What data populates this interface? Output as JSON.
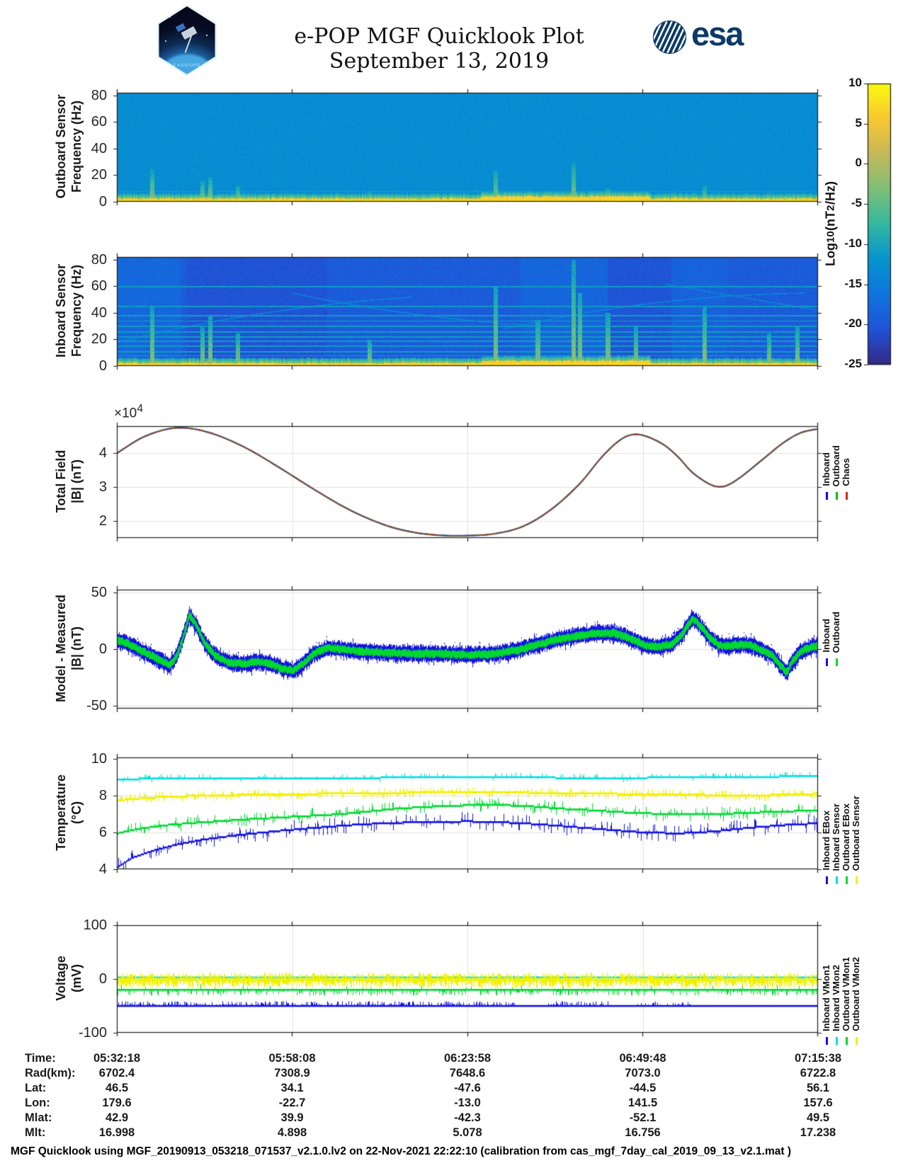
{
  "header": {
    "title": "e-POP MGF Quicklook Plot",
    "date": "September 13, 2019",
    "cassiope_label": "CASSIOPE",
    "esa_label": "esa"
  },
  "colorbar": {
    "label_prefix": "Log",
    "label_sub": "10",
    "label_mid": " (nT",
    "label_sup": "2",
    "label_suffix": "/Hz)",
    "ticks": [
      10,
      5,
      0,
      -5,
      -10,
      -15,
      -20,
      -25
    ],
    "range": [
      -25,
      10
    ],
    "colormap": "parula"
  },
  "chart_data": [
    {
      "type": "heatmap",
      "name": "outboard-spectrogram",
      "ylabel": [
        "Outboard Sensor",
        "Frequency (Hz)"
      ],
      "yticks": [
        0,
        20,
        40,
        60,
        80
      ],
      "ytick_labels": [
        "0",
        "20",
        "40",
        "60",
        "80"
      ],
      "ylim": [
        0,
        82
      ],
      "zlim": [
        -25,
        10
      ],
      "colormap": "parula",
      "base_level": -13,
      "noise": 1.7,
      "low_band": {
        "freq": 2.6,
        "level": 6.3
      },
      "thick_band": [
        0.52,
        0.76
      ],
      "hline_freqs": [
        8
      ],
      "hline_level": -10.5,
      "streaks": [
        {
          "x": 0.05,
          "fmax": 25
        },
        {
          "x": 0.122,
          "fmax": 16
        },
        {
          "x": 0.133,
          "fmax": 19
        },
        {
          "x": 0.172,
          "fmax": 12
        },
        {
          "x": 0.36,
          "fmax": 8
        },
        {
          "x": 0.54,
          "fmax": 24
        },
        {
          "x": 0.651,
          "fmax": 30
        },
        {
          "x": 0.7,
          "fmax": 10
        },
        {
          "x": 0.838,
          "fmax": 12
        },
        {
          "x": 0.93,
          "fmax": 7
        }
      ]
    },
    {
      "type": "heatmap",
      "name": "inboard-spectrogram",
      "ylabel": [
        "Inboard Sensor",
        "Frequency (Hz)"
      ],
      "yticks": [
        0,
        20,
        40,
        60,
        80
      ],
      "ytick_labels": [
        "0",
        "20",
        "40",
        "60",
        "80"
      ],
      "ylim": [
        0,
        82
      ],
      "zlim": [
        -25,
        10
      ],
      "colormap": "parula",
      "base_level": -19.5,
      "noise": 2.1,
      "low_band": {
        "freq": 2.4,
        "level": 6.3
      },
      "thick_band": [
        0.52,
        0.76
      ],
      "patches": [
        [
          0.0,
          0.09,
          1.5
        ],
        [
          0.1,
          0.3,
          -1.0
        ],
        [
          0.575,
          0.7,
          1.2
        ],
        [
          0.7,
          0.79,
          -0.8
        ],
        [
          0.79,
          0.87,
          0.8
        ]
      ],
      "hline_freqs": [
        5,
        8,
        11,
        15,
        19,
        22,
        26,
        30,
        34,
        38,
        45,
        60
      ],
      "hline_level": -11,
      "arcs": [
        {
          "x0": 0.0,
          "x1": 0.42,
          "f0": 18,
          "f1": 52,
          "bow": 10
        },
        {
          "x0": 0.25,
          "x1": 0.62,
          "f0": 55,
          "f1": 30,
          "bow": -8
        },
        {
          "x0": 0.55,
          "x1": 0.98,
          "f0": 28,
          "f1": 55,
          "bow": 12
        },
        {
          "x0": 0.78,
          "x1": 1.0,
          "f0": 62,
          "f1": 42,
          "bow": 0
        }
      ],
      "arc_level": -14.5,
      "streaks": [
        {
          "x": 0.05,
          "fmax": 45
        },
        {
          "x": 0.122,
          "fmax": 30
        },
        {
          "x": 0.133,
          "fmax": 38
        },
        {
          "x": 0.172,
          "fmax": 25
        },
        {
          "x": 0.36,
          "fmax": 20
        },
        {
          "x": 0.54,
          "fmax": 60
        },
        {
          "x": 0.6,
          "fmax": 35
        },
        {
          "x": 0.651,
          "fmax": 80
        },
        {
          "x": 0.66,
          "fmax": 55
        },
        {
          "x": 0.7,
          "fmax": 40
        },
        {
          "x": 0.74,
          "fmax": 30
        },
        {
          "x": 0.838,
          "fmax": 45
        },
        {
          "x": 0.93,
          "fmax": 25
        },
        {
          "x": 0.97,
          "fmax": 30
        }
      ]
    },
    {
      "type": "line",
      "name": "total-field",
      "ylabel": [
        "Total Field",
        "|B| (nT)"
      ],
      "exponent": {
        "mantissa": "×10",
        "power": "4"
      },
      "yticks": [
        2,
        3,
        4
      ],
      "ytick_labels": [
        "2",
        "3",
        "4"
      ],
      "ylim": [
        1.5,
        4.8
      ],
      "series": [
        {
          "name": "Inboard",
          "color": "#0000ee"
        },
        {
          "name": "Outboard",
          "color": "#00bb22"
        },
        {
          "name": "Chaos",
          "color": "#cc2e00"
        }
      ],
      "points": [
        [
          0,
          4.0
        ],
        [
          0.04,
          4.5
        ],
        [
          0.085,
          4.75
        ],
        [
          0.13,
          4.62
        ],
        [
          0.18,
          4.2
        ],
        [
          0.23,
          3.6
        ],
        [
          0.28,
          2.95
        ],
        [
          0.33,
          2.35
        ],
        [
          0.38,
          1.9
        ],
        [
          0.42,
          1.68
        ],
        [
          0.46,
          1.58
        ],
        [
          0.5,
          1.57
        ],
        [
          0.54,
          1.63
        ],
        [
          0.58,
          1.85
        ],
        [
          0.62,
          2.35
        ],
        [
          0.66,
          3.1
        ],
        [
          0.69,
          3.85
        ],
        [
          0.715,
          4.35
        ],
        [
          0.735,
          4.55
        ],
        [
          0.755,
          4.5
        ],
        [
          0.78,
          4.25
        ],
        [
          0.8,
          3.9
        ],
        [
          0.82,
          3.45
        ],
        [
          0.84,
          3.15
        ],
        [
          0.855,
          3.02
        ],
        [
          0.87,
          3.05
        ],
        [
          0.89,
          3.3
        ],
        [
          0.92,
          3.8
        ],
        [
          0.95,
          4.3
        ],
        [
          0.975,
          4.6
        ],
        [
          1,
          4.72
        ]
      ]
    },
    {
      "type": "band",
      "name": "model-minus-measured",
      "ylabel": [
        "Model - Measured",
        "|B| (nT)"
      ],
      "yticks": [
        -50,
        0,
        50
      ],
      "ytick_labels": [
        "-50",
        "0",
        "50"
      ],
      "ylim": [
        -52.5,
        52.5
      ],
      "series": [
        {
          "name": "Inboard",
          "color": "#1212e0",
          "halfwidth": 6.5
        },
        {
          "name": "Outboard",
          "color": "#00d830",
          "halfwidth": 3.2
        }
      ],
      "center_points": [
        [
          0,
          8
        ],
        [
          0.015,
          5
        ],
        [
          0.03,
          0
        ],
        [
          0.05,
          -6
        ],
        [
          0.065,
          -11
        ],
        [
          0.075,
          -14
        ],
        [
          0.085,
          -6
        ],
        [
          0.095,
          12
        ],
        [
          0.103,
          30
        ],
        [
          0.112,
          22
        ],
        [
          0.125,
          5
        ],
        [
          0.14,
          -6
        ],
        [
          0.16,
          -12
        ],
        [
          0.18,
          -13
        ],
        [
          0.2,
          -11
        ],
        [
          0.22,
          -13
        ],
        [
          0.235,
          -17
        ],
        [
          0.25,
          -19
        ],
        [
          0.265,
          -13
        ],
        [
          0.28,
          -4
        ],
        [
          0.3,
          1
        ],
        [
          0.32,
          0
        ],
        [
          0.35,
          -2
        ],
        [
          0.38,
          -3
        ],
        [
          0.42,
          -4
        ],
        [
          0.46,
          -4
        ],
        [
          0.5,
          -5
        ],
        [
          0.54,
          -4
        ],
        [
          0.57,
          -1
        ],
        [
          0.6,
          4
        ],
        [
          0.63,
          9
        ],
        [
          0.66,
          12
        ],
        [
          0.685,
          14
        ],
        [
          0.71,
          14
        ],
        [
          0.73,
          10
        ],
        [
          0.75,
          4
        ],
        [
          0.77,
          2
        ],
        [
          0.79,
          4
        ],
        [
          0.805,
          12
        ],
        [
          0.82,
          27
        ],
        [
          0.83,
          22
        ],
        [
          0.845,
          10
        ],
        [
          0.86,
          3
        ],
        [
          0.875,
          3
        ],
        [
          0.89,
          4
        ],
        [
          0.905,
          3
        ],
        [
          0.92,
          -1
        ],
        [
          0.935,
          -6
        ],
        [
          0.948,
          -16
        ],
        [
          0.955,
          -21
        ],
        [
          0.962,
          -12
        ],
        [
          0.975,
          -2
        ],
        [
          0.99,
          2
        ],
        [
          1,
          3
        ]
      ]
    },
    {
      "type": "noisy-lines",
      "name": "temperature",
      "ylabel": [
        "Temperature",
        "(°C)"
      ],
      "yticks": [
        4,
        6,
        8,
        10
      ],
      "ytick_labels": [
        "4",
        "6",
        "8",
        "10"
      ],
      "ylim": [
        4.0,
        10.07
      ],
      "series": [
        {
          "name": "Inboard EBox",
          "color": "#1212e0",
          "spike_prob": 0.35,
          "spike_max": 0.5,
          "up_frac": 0.5,
          "points": [
            [
              0,
              4.1
            ],
            [
              0.02,
              4.6
            ],
            [
              0.05,
              5.0
            ],
            [
              0.08,
              5.3
            ],
            [
              0.12,
              5.6
            ],
            [
              0.17,
              5.85
            ],
            [
              0.22,
              6.05
            ],
            [
              0.28,
              6.25
            ],
            [
              0.35,
              6.45
            ],
            [
              0.42,
              6.55
            ],
            [
              0.5,
              6.6
            ],
            [
              0.55,
              6.55
            ],
            [
              0.6,
              6.45
            ],
            [
              0.65,
              6.3
            ],
            [
              0.7,
              6.15
            ],
            [
              0.75,
              6.0
            ],
            [
              0.8,
              5.95
            ],
            [
              0.85,
              6.05
            ],
            [
              0.9,
              6.25
            ],
            [
              0.95,
              6.4
            ],
            [
              1,
              6.5
            ]
          ]
        },
        {
          "name": "Inboard Sensor",
          "color": "#00dede",
          "spike_prob": 0.2,
          "spike_max": 0.25,
          "up_frac": 0.85,
          "points": [
            [
              0,
              8.9
            ],
            [
              0.1,
              8.92
            ],
            [
              0.3,
              8.95
            ],
            [
              0.5,
              9.0
            ],
            [
              0.7,
              8.95
            ],
            [
              0.85,
              9.0
            ],
            [
              1,
              9.05
            ]
          ]
        },
        {
          "name": "Outboard EBox",
          "color": "#00d830",
          "spike_prob": 0.35,
          "spike_max": 0.4,
          "up_frac": 0.6,
          "points": [
            [
              0,
              5.95
            ],
            [
              0.03,
              6.2
            ],
            [
              0.07,
              6.4
            ],
            [
              0.12,
              6.55
            ],
            [
              0.18,
              6.7
            ],
            [
              0.25,
              6.85
            ],
            [
              0.32,
              7.0
            ],
            [
              0.4,
              7.3
            ],
            [
              0.47,
              7.45
            ],
            [
              0.53,
              7.5
            ],
            [
              0.58,
              7.45
            ],
            [
              0.63,
              7.3
            ],
            [
              0.68,
              7.2
            ],
            [
              0.74,
              7.05
            ],
            [
              0.8,
              7.0
            ],
            [
              0.86,
              7.0
            ],
            [
              0.92,
              7.1
            ],
            [
              1,
              7.2
            ]
          ]
        },
        {
          "name": "Outboard Sensor",
          "color": "#f0f000",
          "spike_prob": 0.55,
          "spike_max": 0.3,
          "up_frac": 0.5,
          "points": [
            [
              0,
              7.75
            ],
            [
              0.05,
              7.9
            ],
            [
              0.12,
              8.0
            ],
            [
              0.2,
              8.05
            ],
            [
              0.3,
              8.1
            ],
            [
              0.4,
              8.15
            ],
            [
              0.5,
              8.2
            ],
            [
              0.6,
              8.15
            ],
            [
              0.7,
              8.1
            ],
            [
              0.8,
              8.05
            ],
            [
              0.9,
              8.0
            ],
            [
              1,
              8.1
            ]
          ]
        }
      ]
    },
    {
      "type": "noisy-lines",
      "name": "voltage",
      "ylabel": [
        "Voltage",
        "(mV)"
      ],
      "yticks": [
        -100,
        0,
        100
      ],
      "ytick_labels": [
        "-100",
        "0",
        "100"
      ],
      "ylim": [
        -100,
        100
      ],
      "series": [
        {
          "name": "Inboard VMon1",
          "color": "#1212e0",
          "spike_prob": 0.5,
          "spike_max": 9,
          "up_frac": 1,
          "hair_ranges": [
            [
              0,
              0.57
            ],
            [
              0.615,
              0.7
            ],
            [
              0.74,
              0.82
            ]
          ],
          "points": [
            [
              0,
              -50
            ],
            [
              1,
              -50
            ]
          ]
        },
        {
          "name": "Inboard VMon2",
          "color": "#00dede",
          "spike_prob": 0.04,
          "spike_max": 4,
          "up_frac": 0.5,
          "points": [
            [
              0,
              3
            ],
            [
              1,
              3
            ]
          ]
        },
        {
          "name": "Outboard VMon1",
          "color": "#00d830",
          "spike_prob": 0.45,
          "spike_max": 11,
          "up_frac": 0.1,
          "points": [
            [
              0,
              -20
            ],
            [
              1,
              -20
            ]
          ]
        },
        {
          "name": "Outboard VMon2",
          "color": "#f0f000",
          "band": 14,
          "spike_prob": 0.93,
          "points": [
            [
              0,
              -2
            ],
            [
              1,
              -2
            ]
          ]
        }
      ]
    }
  ],
  "info_table": [
    {
      "label": "Time:",
      "values": [
        "05:32:18",
        "05:58:08",
        "06:23:58",
        "06:49:48",
        "07:15:38"
      ]
    },
    {
      "label": "Rad(km):",
      "values": [
        "6702.4",
        "7308.9",
        "7648.6",
        "7073.0",
        "6722.8"
      ]
    },
    {
      "label": "Lat:",
      "values": [
        "46.5",
        "34.1",
        "-47.6",
        "-44.5",
        "56.1"
      ]
    },
    {
      "label": "Lon:",
      "values": [
        "179.6",
        "-22.7",
        "-13.0",
        "141.5",
        "157.6"
      ]
    },
    {
      "label": "Mlat:",
      "values": [
        "42.9",
        "39.9",
        "-42.3",
        "-52.1",
        "49.5"
      ]
    },
    {
      "label": "Mlt:",
      "values": [
        "16.998",
        "4.898",
        "5.078",
        "16.756",
        "17.238"
      ]
    }
  ],
  "footer": "MGF Quicklook using MGF_20190913_053218_071537_v2.1.0.lv2 on 22-Nov-2021 22:22:10 (calibration from cas_mgf_7day_cal_2019_09_13_v2.1.mat )"
}
